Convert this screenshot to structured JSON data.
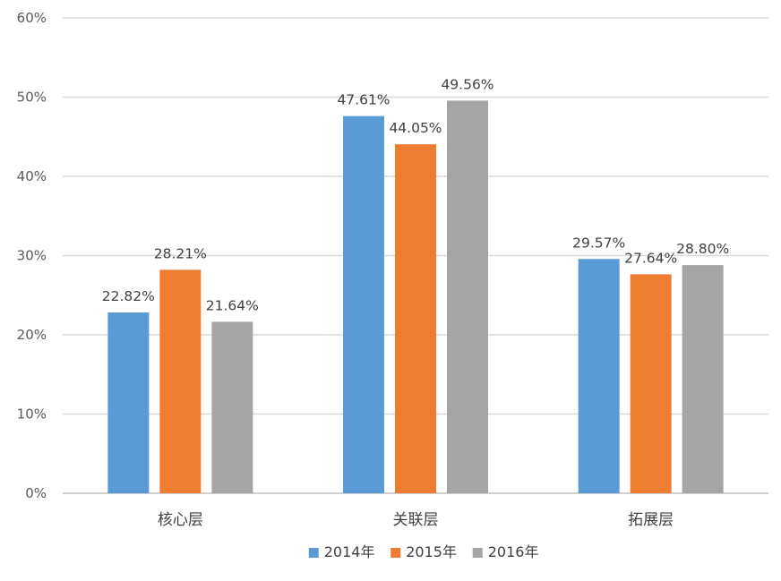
{
  "chart_data": {
    "type": "bar",
    "title": "",
    "xlabel": "",
    "ylabel": "",
    "categories": [
      "核心层",
      "关联层",
      "拓展层"
    ],
    "series": [
      {
        "name": "2014年",
        "values": [
          22.82,
          47.61,
          29.57
        ],
        "labels": [
          "22.82%",
          "47.61%",
          "29.57%"
        ],
        "color": "#5B9BD5"
      },
      {
        "name": "2015年",
        "values": [
          28.21,
          44.05,
          27.64
        ],
        "labels": [
          "28.21%",
          "44.05%",
          "27.64%"
        ],
        "color": "#ED7D31"
      },
      {
        "name": "2016年",
        "values": [
          21.64,
          49.56,
          28.8
        ],
        "labels": [
          "21.64%",
          "49.56%",
          "28.80%"
        ],
        "color": "#A5A5A5"
      }
    ],
    "ylim": [
      0,
      60
    ],
    "yticks": [
      0,
      10,
      20,
      30,
      40,
      50,
      60
    ],
    "ytick_labels": [
      "0%",
      "10%",
      "20%",
      "30%",
      "40%",
      "50%",
      "60%"
    ],
    "grid": true,
    "legend_position": "bottom"
  }
}
